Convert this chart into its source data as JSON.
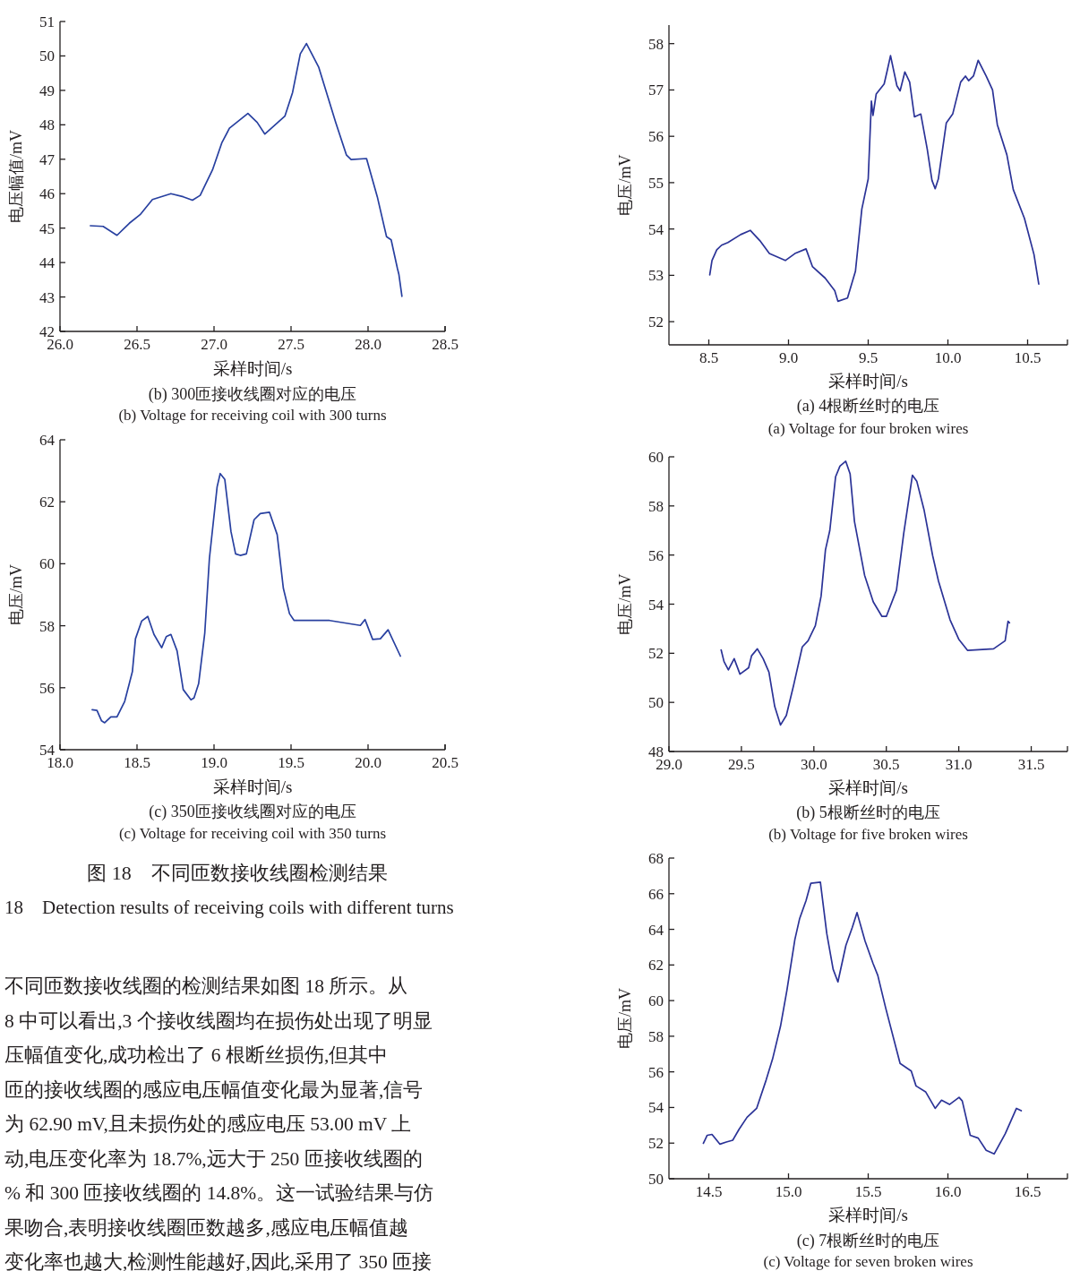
{
  "chart_data": [
    {
      "type": "line",
      "title": "(b) 300匝接收线圈对应的电压",
      "subtitle": "(b) Voltage for receiving coil with 300 turns",
      "xlabel": "采样时间/s",
      "ylabel": "电压幅值/mV",
      "x": [
        26.197,
        26.28,
        26.37,
        26.45,
        26.52,
        26.6,
        26.72,
        26.8,
        26.86,
        26.91,
        26.99,
        27.05,
        27.1,
        27.22,
        27.28,
        27.33,
        27.46,
        27.51,
        27.56,
        27.6,
        27.68,
        27.79,
        27.86,
        27.89,
        27.99,
        28.06,
        28.12,
        28.15,
        28.19,
        28.2,
        28.22
      ],
      "series": [
        {
          "color": "#2840a0",
          "values": [
            45.07,
            45.05,
            44.79,
            45.14,
            45.39,
            45.83,
            46.0,
            45.91,
            45.81,
            45.95,
            46.69,
            47.47,
            47.9,
            48.33,
            48.07,
            47.73,
            48.25,
            48.94,
            50.06,
            50.36,
            49.67,
            48.07,
            47.12,
            46.99,
            47.02,
            45.91,
            44.75,
            44.66,
            43.84,
            43.66,
            43.02
          ]
        }
      ],
      "xlim": [
        26.0,
        28.5
      ],
      "ylim": [
        42,
        51
      ],
      "xticks": [
        {
          "value": 26.0,
          "label": "26.0"
        },
        {
          "value": 26.5,
          "label": "26.5"
        },
        {
          "value": 27.0,
          "label": "27.0"
        },
        {
          "value": 27.5,
          "label": "27.5"
        },
        {
          "value": 28.0,
          "label": "28.0"
        },
        {
          "value": 28.5,
          "label": "28.5"
        }
      ],
      "yticks": [
        42,
        43,
        44,
        45,
        46,
        47,
        48,
        49,
        50,
        51
      ]
    },
    {
      "type": "line",
      "title": "(c) 350匝接收线圈对应的电压",
      "subtitle": "(c) Voltage for receiving coil with 350 turns",
      "xlabel": "采样时间/s",
      "ylabel": "电压/mV",
      "x": [
        18.209,
        18.24,
        18.27,
        18.29,
        18.33,
        18.37,
        18.42,
        18.47,
        18.49,
        18.53,
        18.57,
        18.61,
        18.66,
        18.69,
        18.72,
        18.76,
        18.8,
        18.85,
        18.87,
        18.9,
        18.94,
        18.97,
        19.02,
        19.04,
        19.07,
        19.11,
        19.14,
        19.17,
        19.21,
        19.26,
        19.3,
        19.36,
        19.41,
        19.45,
        19.49,
        19.52,
        19.75,
        19.95,
        19.98,
        20.03,
        20.08,
        20.13,
        20.21
      ],
      "series": [
        {
          "color": "#2840a0",
          "values": [
            55.29,
            55.27,
            54.93,
            54.87,
            55.06,
            55.06,
            55.56,
            56.52,
            57.58,
            58.15,
            58.3,
            57.72,
            57.29,
            57.65,
            57.72,
            57.19,
            55.94,
            55.61,
            55.67,
            56.13,
            57.77,
            60.17,
            62.48,
            62.91,
            62.72,
            61.04,
            60.32,
            60.27,
            60.32,
            61.42,
            61.62,
            61.66,
            60.94,
            59.21,
            58.39,
            58.17,
            58.17,
            58.01,
            58.2,
            57.56,
            57.58,
            57.87,
            57.02
          ]
        }
      ],
      "xlim": [
        18.0,
        20.5
      ],
      "ylim": [
        54,
        64
      ],
      "xticks": [
        {
          "value": 18.0,
          "label": "18.0"
        },
        {
          "value": 18.5,
          "label": "18.5"
        },
        {
          "value": 19.0,
          "label": "19.0"
        },
        {
          "value": 19.5,
          "label": "19.5"
        },
        {
          "value": 20.0,
          "label": "20.0"
        },
        {
          "value": 20.5,
          "label": "20.5"
        }
      ],
      "yticks": [
        54,
        56,
        58,
        60,
        62,
        64
      ]
    },
    {
      "type": "other",
      "annotations": [
        "图 18　不同匝数接收线圈检测结果",
        "18　Detection results of receiving coils with different turns",
        "不同匝数接收线圈的检测结果如图 18 所示。从",
        "8 中可以看出,3 个接收线圈均在损伤处出现了明显",
        "压幅值变化,成功检出了 6 根断丝损伤,但其中",
        "匝的接收线圈的感应电压幅值变化最为显著,信号",
        "为 62.90 mV,且未损伤处的感应电压 53.00 mV 上",
        "动,电压变化率为 18.7%,远大于 250 匝接收线圈的",
        "% 和 300 匝接收线圈的 14.8%。这一试验结果与仿",
        "果吻合,表明接收线圈匝数越多,感应电压幅值越",
        "变化率也越大,检测性能越好,因此,采用了 350 匝接"
      ]
    },
    {
      "type": "line",
      "title": "(a) 4根断丝时的电压",
      "subtitle": "(a) Voltage for four broken wires",
      "xlabel": "采样时间/s",
      "ylabel": "电压/mV",
      "x": [
        8.506,
        8.52,
        8.55,
        8.58,
        8.62,
        8.7,
        8.76,
        8.82,
        8.88,
        8.98,
        9.04,
        9.11,
        9.15,
        9.23,
        9.29,
        9.31,
        9.37,
        9.42,
        9.46,
        9.5,
        9.52,
        9.53,
        9.55,
        9.6,
        9.62,
        9.64,
        9.68,
        9.7,
        9.73,
        9.76,
        9.79,
        9.83,
        9.87,
        9.9,
        9.92,
        9.94,
        9.99,
        10.03,
        10.08,
        10.11,
        10.13,
        10.16,
        10.19,
        10.24,
        10.28,
        10.31,
        10.37,
        10.41,
        10.48,
        10.54,
        10.57
      ],
      "series": [
        {
          "color": "#2b3397",
          "values": [
            53.01,
            53.32,
            53.55,
            53.65,
            53.71,
            53.88,
            53.97,
            53.75,
            53.47,
            53.32,
            53.47,
            53.57,
            53.19,
            52.94,
            52.67,
            52.44,
            52.51,
            53.09,
            54.43,
            55.08,
            56.76,
            56.45,
            56.91,
            57.13,
            57.43,
            57.74,
            57.09,
            56.98,
            57.39,
            57.17,
            56.42,
            56.48,
            55.73,
            55.05,
            54.87,
            55.08,
            56.29,
            56.48,
            57.17,
            57.3,
            57.2,
            57.3,
            57.64,
            57.3,
            57.0,
            56.25,
            55.6,
            54.85,
            54.23,
            53.45,
            52.81
          ]
        }
      ],
      "xlim": [
        8.25,
        10.75
      ],
      "ylim": [
        51.5,
        58.4
      ],
      "xticks": [
        {
          "value": 8.5,
          "label": "8.5"
        },
        {
          "value": 9.0,
          "label": "9.0"
        },
        {
          "value": 9.5,
          "label": "9.5"
        },
        {
          "value": 10.0,
          "label": "10.0"
        },
        {
          "value": 10.5,
          "label": "10.5"
        }
      ],
      "yticks": [
        52,
        53,
        54,
        55,
        56,
        57,
        58
      ]
    },
    {
      "type": "line",
      "title": "(b) 5根断丝时的电压",
      "subtitle": "(b) Voltage for five broken wires",
      "xlabel": "采样时间/s",
      "ylabel": "电压/mV",
      "x": [
        29.36,
        29.38,
        29.41,
        29.45,
        29.49,
        29.55,
        29.57,
        29.61,
        29.65,
        29.69,
        29.73,
        29.77,
        29.81,
        29.86,
        29.92,
        29.96,
        30.01,
        30.05,
        30.08,
        30.11,
        30.15,
        30.18,
        30.22,
        30.25,
        30.28,
        30.35,
        30.41,
        30.47,
        30.5,
        30.57,
        30.62,
        30.68,
        30.71,
        30.76,
        30.82,
        30.86,
        30.94,
        31.0,
        31.06,
        31.24,
        31.32,
        31.34,
        31.35
      ],
      "series": [
        {
          "color": "#2b3397",
          "values": [
            52.14,
            51.66,
            51.32,
            51.78,
            51.15,
            51.41,
            51.9,
            52.18,
            51.78,
            51.23,
            49.83,
            49.08,
            49.47,
            50.69,
            52.26,
            52.51,
            53.12,
            54.33,
            56.21,
            57.0,
            59.19,
            59.62,
            59.82,
            59.31,
            57.37,
            55.18,
            54.09,
            53.5,
            53.5,
            54.57,
            56.88,
            59.25,
            59.01,
            57.85,
            55.97,
            54.94,
            53.36,
            52.57,
            52.12,
            52.18,
            52.51,
            53.3,
            53.24
          ]
        }
      ],
      "xlim": [
        29.0,
        31.75
      ],
      "ylim": [
        48,
        60
      ],
      "xticks": [
        {
          "value": 29.0,
          "label": "29.0"
        },
        {
          "value": 29.5,
          "label": "29.5"
        },
        {
          "value": 30.0,
          "label": "30.0"
        },
        {
          "value": 30.5,
          "label": "30.5"
        },
        {
          "value": 31.0,
          "label": "31.0"
        },
        {
          "value": 31.5,
          "label": "31.5"
        }
      ],
      "yticks": [
        48,
        50,
        52,
        54,
        56,
        58,
        60
      ]
    },
    {
      "type": "line",
      "title": "(c) 7根断丝时的电压",
      "subtitle": "(c) Voltage for seven broken wires",
      "xlabel": "采样时间/s",
      "ylabel": "电压/mV",
      "x": [
        14.466,
        14.49,
        14.52,
        14.57,
        14.61,
        14.65,
        14.69,
        14.74,
        14.8,
        14.86,
        14.9,
        14.95,
        14.99,
        15.04,
        15.07,
        15.11,
        15.14,
        15.2,
        15.24,
        15.28,
        15.31,
        15.36,
        15.4,
        15.43,
        15.48,
        15.53,
        15.56,
        15.61,
        15.7,
        15.77,
        15.8,
        15.86,
        15.92,
        15.96,
        16.01,
        16.07,
        16.09,
        16.14,
        16.19,
        16.24,
        16.29,
        16.36,
        16.43,
        16.46
      ],
      "series": [
        {
          "color": "#2b3397",
          "values": [
            51.99,
            52.44,
            52.49,
            51.94,
            52.06,
            52.16,
            52.78,
            53.45,
            53.95,
            55.55,
            56.72,
            58.57,
            60.58,
            63.43,
            64.61,
            65.61,
            66.59,
            66.65,
            63.77,
            61.76,
            61.05,
            63.1,
            64.1,
            64.94,
            63.35,
            62.09,
            61.42,
            59.57,
            56.47,
            56.05,
            55.21,
            54.88,
            53.95,
            54.41,
            54.17,
            54.57,
            54.37,
            52.44,
            52.28,
            51.6,
            51.39,
            52.53,
            53.95,
            53.82
          ]
        }
      ],
      "xlim": [
        14.25,
        16.75
      ],
      "ylim": [
        50,
        68
      ],
      "xticks": [
        {
          "value": 14.5,
          "label": "14.5"
        },
        {
          "value": 15.0,
          "label": "15.0"
        },
        {
          "value": 15.5,
          "label": "15.5"
        },
        {
          "value": 16.0,
          "label": "16.0"
        },
        {
          "value": 16.5,
          "label": "16.5"
        }
      ],
      "yticks": [
        50,
        52,
        54,
        56,
        58,
        60,
        62,
        64,
        66,
        68
      ]
    }
  ]
}
